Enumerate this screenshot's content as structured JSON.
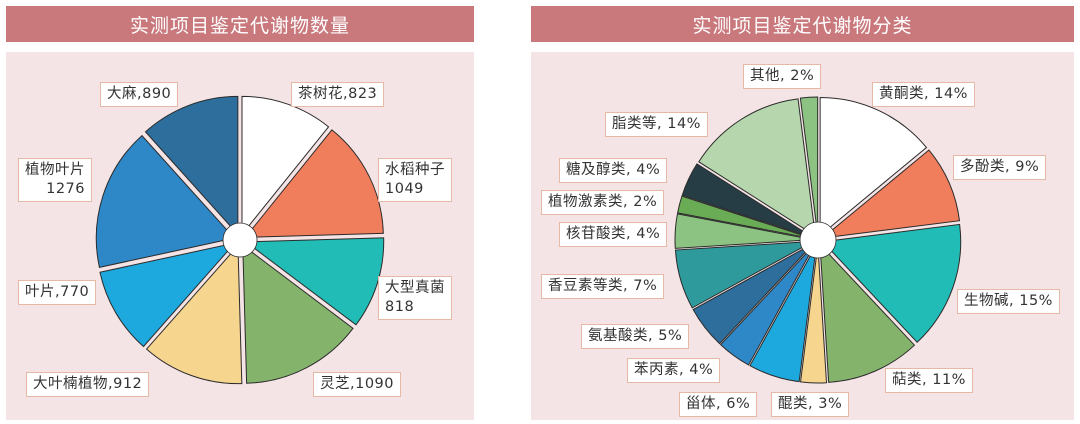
{
  "chart_data": [
    {
      "type": "pie",
      "title": "实测项目鉴定代谢物数量",
      "slices": [
        {
          "label": "茶树花",
          "value": 823,
          "color": "#ffffff"
        },
        {
          "label": "水稻种子",
          "value": 1049,
          "color": "#f07d5c"
        },
        {
          "label": "大型真菌",
          "value": 818,
          "color": "#22bcb6"
        },
        {
          "label": "灵芝",
          "value": 1090,
          "color": "#84b36b"
        },
        {
          "label": "大叶楠植物",
          "value": 912,
          "color": "#f6d58e"
        },
        {
          "label": "叶片",
          "value": 770,
          "color": "#1ea9de"
        },
        {
          "label": "植物叶片",
          "value": 1276,
          "color": "#2e87c6"
        },
        {
          "label": "大麻",
          "value": 890,
          "color": "#2d6e9c"
        }
      ],
      "labels": {
        "s0": "茶树花,823",
        "s1_name": "水稻种子",
        "s1_num": "1049",
        "s2_name": "大型真菌",
        "s2_num": "818",
        "s3": "灵芝,1090",
        "s4": "大叶楠植物,912",
        "s5": "叶片,770",
        "s6_name": "植物叶片",
        "s6_num": "1276",
        "s7": "大麻,890"
      }
    },
    {
      "type": "pie",
      "title": "实测项目鉴定代谢物分类",
      "slices": [
        {
          "label": "黄酮类",
          "value": 14,
          "color": "#ffffff"
        },
        {
          "label": "多酚类",
          "value": 9,
          "color": "#f07d5c"
        },
        {
          "label": "生物碱",
          "value": 15,
          "color": "#22bcb6"
        },
        {
          "label": "萜类",
          "value": 11,
          "color": "#84b36b"
        },
        {
          "label": "醌类",
          "value": 3,
          "color": "#f6d58e"
        },
        {
          "label": "甾体",
          "value": 6,
          "color": "#1ea9de"
        },
        {
          "label": "苯丙素",
          "value": 4,
          "color": "#2e87c6"
        },
        {
          "label": "氨基酸类",
          "value": 5,
          "color": "#2d6e9c"
        },
        {
          "label": "香豆素等类",
          "value": 7,
          "color": "#2e9a9c"
        },
        {
          "label": "核苷酸类",
          "value": 4,
          "color": "#8cc382"
        },
        {
          "label": "植物激素类",
          "value": 2,
          "color": "#6aac55"
        },
        {
          "label": "糖及醇类",
          "value": 4,
          "color": "#263d45"
        },
        {
          "label": "脂类等",
          "value": 14,
          "color": "#b6d6ae"
        },
        {
          "label": "其他",
          "value": 2,
          "color": "#8cc382"
        }
      ],
      "labels": {
        "s0": "黄酮类, 14%",
        "s1": "多酚类, 9%",
        "s2": "生物碱, 15%",
        "s3": "萜类, 11%",
        "s4": "醌类, 3%",
        "s5": "甾体, 6%",
        "s6": "苯丙素, 4%",
        "s7": "氨基酸类, 5%",
        "s8": "香豆素等类, 7%",
        "s9": "核苷酸类, 4%",
        "s10": "植物激素类, 2%",
        "s11": "糖及醇类, 4%",
        "s12": "脂类等, 14%",
        "s13": "其他, 2%"
      }
    }
  ]
}
